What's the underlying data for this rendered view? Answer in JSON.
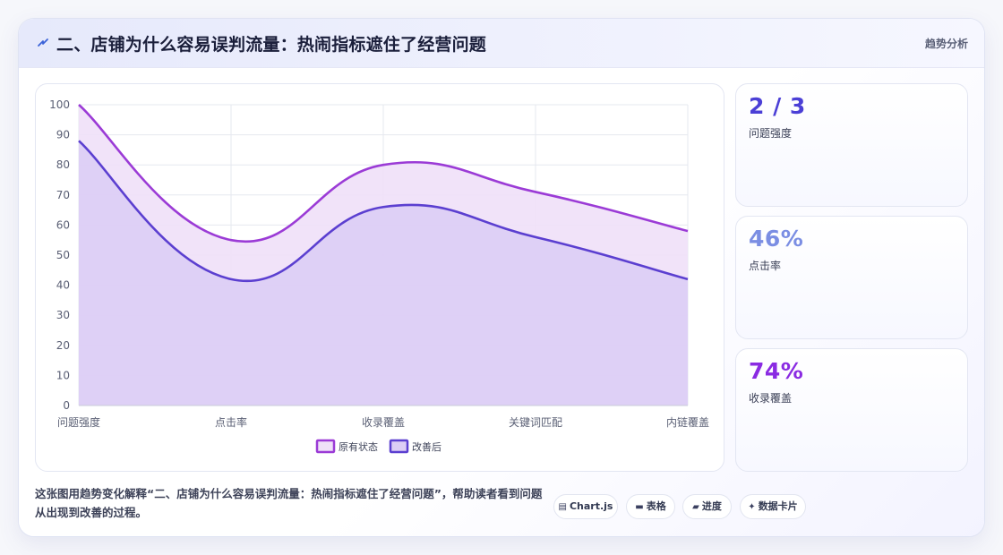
{
  "header": {
    "title": "二、店铺为什么容易误判流量：热闹指标遮住了经营问题",
    "right_label": "趋势分析",
    "icon": "lightning-icon"
  },
  "chart_data": {
    "type": "area",
    "categories": [
      "问题强度",
      "点击率",
      "收录覆盖",
      "关键词匹配",
      "内链覆盖"
    ],
    "series": [
      {
        "name": "原有状态",
        "values": [
          100,
          55,
          80,
          71,
          58
        ],
        "color": "#9b3bd6",
        "fill": "#efe0f8"
      },
      {
        "name": "改善后",
        "values": [
          88,
          42,
          66,
          56,
          42
        ],
        "color": "#5b3fd0",
        "fill": "#dccdf5"
      }
    ],
    "ylim": [
      0,
      100
    ],
    "yticks": [
      0,
      10,
      20,
      30,
      40,
      50,
      60,
      70,
      80,
      90,
      100
    ],
    "grid": true,
    "legend_position": "bottom"
  },
  "kpis": [
    {
      "value": "2 / 3",
      "label": "问题强度",
      "color": "#4b3fd6"
    },
    {
      "value": "46%",
      "label": "点击率",
      "color": "#7b8ee3"
    },
    {
      "value": "74%",
      "label": "收录覆盖",
      "color": "#8a2be2"
    }
  ],
  "footer": {
    "description": "这张图用趋势变化解释“二、店铺为什么容易误判流量：热闹指标遮住了经营问题”，帮助读者看到问题从出现到改善的过程。",
    "chips": [
      {
        "icon": "chart-icon",
        "glyph": "▤",
        "label": "Chart.js"
      },
      {
        "icon": "table-icon",
        "glyph": "▬",
        "label": "表格"
      },
      {
        "icon": "progress-icon",
        "glyph": "▰",
        "label": "进度"
      },
      {
        "icon": "sparkle-icon",
        "glyph": "✦",
        "label": "数据卡片"
      }
    ]
  }
}
